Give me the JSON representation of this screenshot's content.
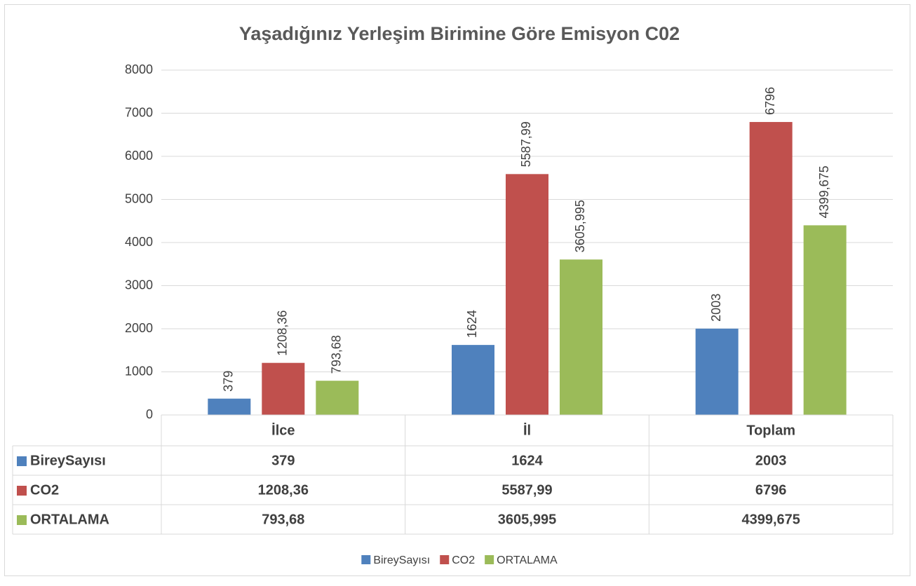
{
  "chart_data": {
    "type": "bar",
    "title": "Yaşadığınız Yerleşim Birimine Göre Emisyon C02",
    "categories": [
      "İlce",
      "İl",
      "Toplam"
    ],
    "series": [
      {
        "name": "BireySayısı",
        "color": "#4f81bd",
        "values": [
          379,
          1624,
          2003
        ],
        "value_labels": [
          "379",
          "1624",
          "2003"
        ]
      },
      {
        "name": "CO2",
        "color": "#c0504d",
        "values": [
          1208.36,
          5587.99,
          6796
        ],
        "value_labels": [
          "1208,36",
          "5587,99",
          "6796"
        ]
      },
      {
        "name": "ORTALAMA",
        "color": "#9bbb59",
        "values": [
          793.68,
          3605.995,
          4399.675
        ],
        "value_labels": [
          "793,68",
          "3605,995",
          "4399,675"
        ]
      }
    ],
    "ylim": [
      0,
      8000
    ],
    "yticks": [
      0,
      1000,
      2000,
      3000,
      4000,
      5000,
      6000,
      7000,
      8000
    ],
    "grid": true,
    "legend": "bottom",
    "data_table": true
  }
}
